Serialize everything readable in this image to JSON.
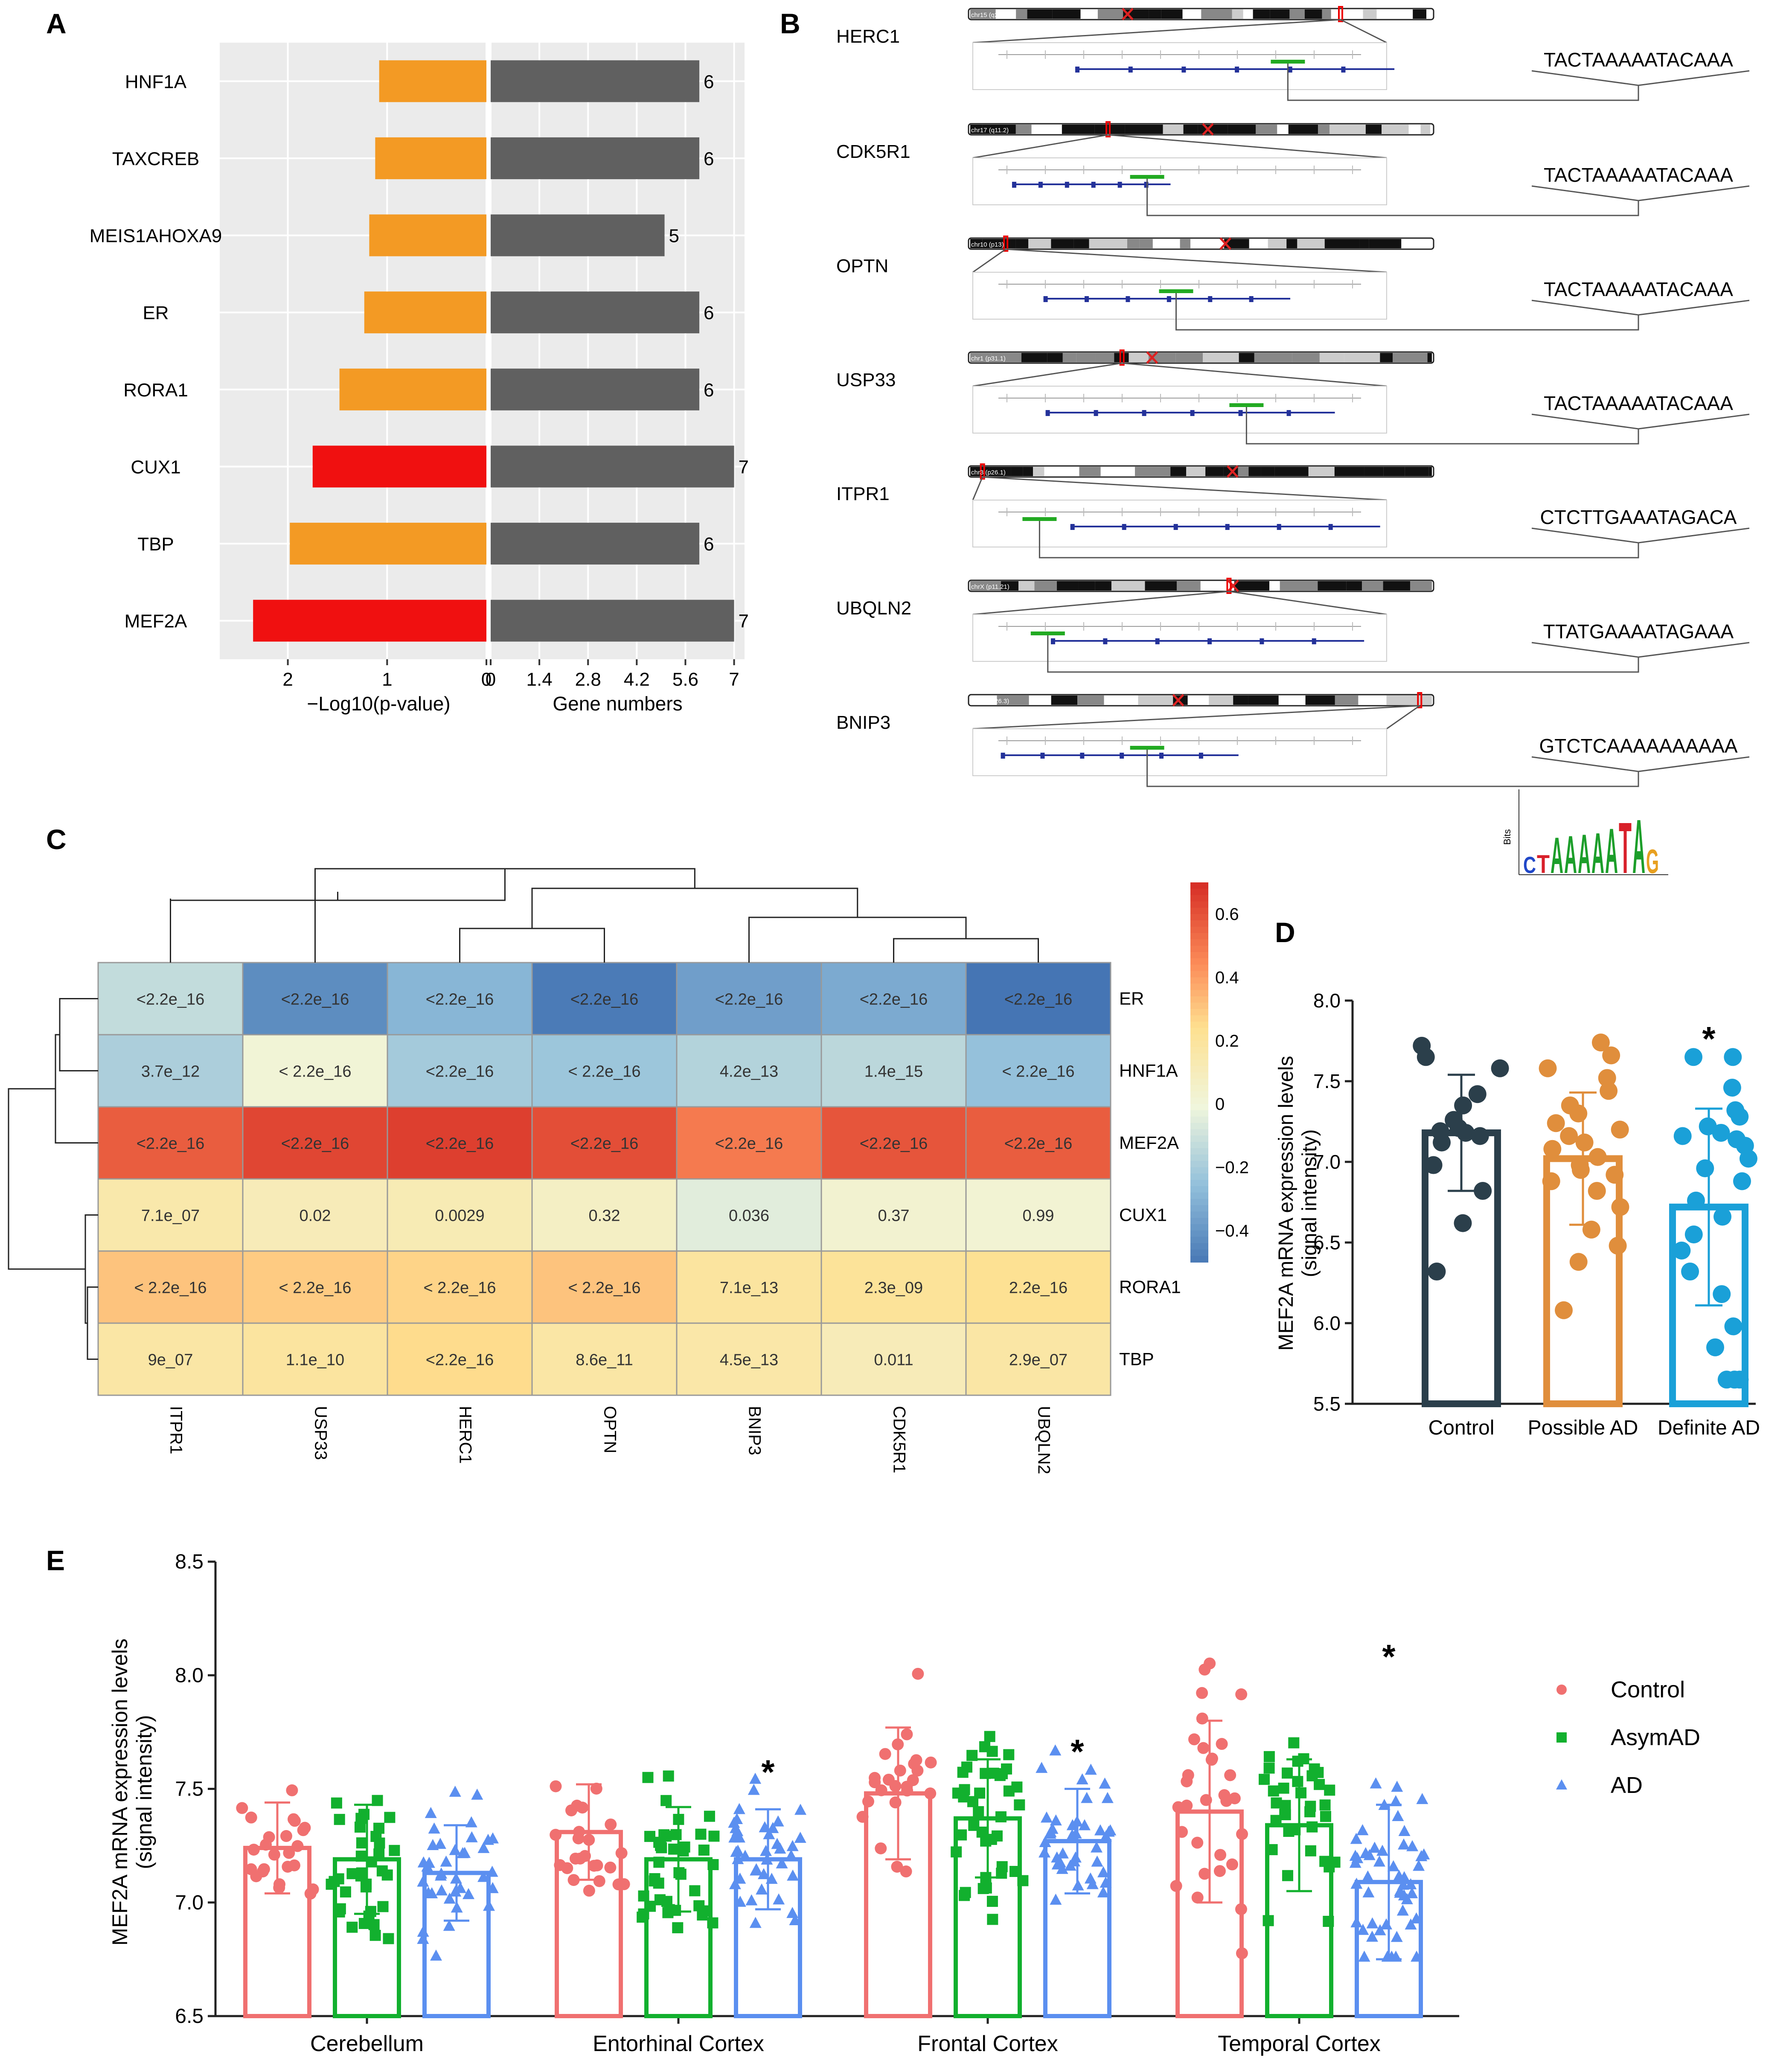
{
  "panels": {
    "A": "A",
    "B": "B",
    "C": "C",
    "D": "D",
    "E": "E"
  },
  "colors": {
    "orange": "#F39A24",
    "red": "#F01010",
    "gray": "#606060",
    "panel_bg": "#EBEBEB",
    "grid": "#FFFFFF",
    "control_d": "#2B3F4B",
    "possible": "#E08E3C",
    "definite": "#1AA0D8",
    "control_e": "#F07070",
    "asym": "#12B02E",
    "ad": "#5B8FF0"
  },
  "chart_data": [
    {
      "panel": "A",
      "type": "bar",
      "categories": [
        "HNF1A",
        "TAXCREB",
        "MEIS1AHOXA9",
        "ER",
        "RORA1",
        "CUX1",
        "TBP",
        "MEF2A"
      ],
      "series": [
        {
          "name": "-Log10(p-value)",
          "values": [
            1.08,
            1.12,
            1.18,
            1.23,
            1.48,
            1.75,
            1.98,
            2.35
          ],
          "colors": [
            "orange",
            "orange",
            "orange",
            "orange",
            "orange",
            "red",
            "orange",
            "red"
          ]
        },
        {
          "name": "Gene numbers",
          "values": [
            6,
            6,
            5,
            6,
            6,
            7,
            6,
            7
          ],
          "labels": [
            "6",
            "6",
            "5",
            "6",
            "6",
            "7",
            "6",
            "7"
          ]
        }
      ],
      "left_xlabel": "−Log10(p-value)",
      "left_ticks": [
        "2",
        "1",
        "0"
      ],
      "left_tick_values": [
        2,
        1,
        0
      ],
      "left_xlim": [
        2.6,
        0
      ],
      "right_xlabel": "Gene numbers",
      "right_ticks": [
        "0",
        "1.4",
        "2.8",
        "4.2",
        "5.6",
        "7"
      ],
      "right_tick_values": [
        0,
        1.4,
        2.8,
        4.2,
        5.6,
        7
      ],
      "right_xlim": [
        0,
        7.3
      ]
    },
    {
      "panel": "B",
      "type": "table",
      "rows": [
        {
          "gene": "HERC1",
          "chr": "chr15 (q22.31)",
          "sequence": "TACTAAAAATACAAA"
        },
        {
          "gene": "CDK5R1",
          "chr": "chr17 (q11.2)",
          "sequence": "TACTAAAAATACAAA"
        },
        {
          "gene": "OPTN",
          "chr": "chr10 (p13)",
          "sequence": "TACTAAAAATACAAA"
        },
        {
          "gene": "USP33",
          "chr": "chr1 (p31.1)",
          "sequence": "TACTAAAAATACAAA"
        },
        {
          "gene": "ITPR1",
          "chr": "chr3 (p26.1)",
          "sequence": "CTCTTGAAATAGACA"
        },
        {
          "gene": "UBQLN2",
          "chr": "chrX (p11.21)",
          "sequence": "TTATGAAAATAGAAA"
        },
        {
          "gene": "BNIP3",
          "chr": "chr10 (q26.3)",
          "sequence": "GTCTCAAAAAAAAAA"
        }
      ],
      "logo_label": "Bits",
      "logo_letters": [
        "C",
        "T",
        "A",
        "A",
        "A",
        "A",
        "A",
        "T",
        "A",
        "G"
      ]
    },
    {
      "panel": "C",
      "type": "heatmap",
      "columns": [
        "ITPR1",
        "USP33",
        "HERC1",
        "OPTN",
        "BNIP3",
        "CDK5R1",
        "UBQLN2"
      ],
      "rows": [
        "ER",
        "HNF1A",
        "MEF2A",
        "CUX1",
        "RORA1",
        "TBP"
      ],
      "correlations": [
        [
          -0.12,
          -0.42,
          -0.28,
          -0.48,
          -0.36,
          -0.32,
          -0.5
        ],
        [
          -0.18,
          0.02,
          -0.2,
          -0.22,
          -0.16,
          -0.14,
          -0.24
        ],
        [
          0.58,
          0.64,
          0.66,
          0.62,
          0.5,
          0.6,
          0.58
        ],
        [
          0.16,
          0.12,
          0.13,
          0.08,
          -0.04,
          0.04,
          0.03
        ],
        [
          0.32,
          0.3,
          0.28,
          0.32,
          0.2,
          0.22,
          0.24
        ],
        [
          0.18,
          0.2,
          0.26,
          0.18,
          0.17,
          0.12,
          0.18
        ]
      ],
      "labels": [
        [
          "<2.2e_16",
          "<2.2e_16",
          "<2.2e_16",
          "<2.2e_16",
          "<2.2e_16",
          "<2.2e_16",
          "<2.2e_16"
        ],
        [
          "3.7e_12",
          "< 2.2e_16",
          "<2.2e_16",
          "< 2.2e_16",
          "4.2e_13",
          "1.4e_15",
          "< 2.2e_16"
        ],
        [
          "<2.2e_16",
          "<2.2e_16",
          "<2.2e_16",
          "<2.2e_16",
          "<2.2e_16",
          "<2.2e_16",
          "<2.2e_16"
        ],
        [
          "7.1e_07",
          "0.02",
          "0.0029",
          "0.32",
          "0.036",
          "0.37",
          "0.99"
        ],
        [
          "< 2.2e_16",
          "< 2.2e_16",
          "< 2.2e_16",
          "< 2.2e_16",
          "7.1e_13",
          "2.3e_09",
          "2.2e_16"
        ],
        [
          "9e_07",
          "1.1e_10",
          "<2.2e_16",
          "8.6e_11",
          "4.5e_13",
          "0.011",
          "2.9e_07"
        ]
      ],
      "colorbar_ticks": [
        "0.6",
        "0.4",
        "0.2",
        "0",
        "−0.2",
        "−0.4"
      ],
      "colorbar_values": [
        0.6,
        0.4,
        0.2,
        0,
        -0.2,
        -0.4
      ],
      "colorbar_range": [
        -0.5,
        0.7
      ]
    },
    {
      "panel": "D",
      "type": "bar",
      "categories": [
        "Control",
        "Possible AD",
        "Definite AD"
      ],
      "means": [
        7.18,
        7.02,
        6.72
      ],
      "sd": [
        0.36,
        0.41,
        0.61
      ],
      "significance": [
        "",
        "",
        "*"
      ],
      "points": [
        [
          7.72,
          7.65,
          7.58,
          7.42,
          7.35,
          7.26,
          7.21,
          7.19,
          7.18,
          7.16,
          7.12,
          6.98,
          6.82,
          6.62,
          6.32
        ],
        [
          7.74,
          7.66,
          7.58,
          7.52,
          7.44,
          7.35,
          7.3,
          7.24,
          7.2,
          7.16,
          7.12,
          7.08,
          7.03,
          6.98,
          6.95,
          6.92,
          6.88,
          6.82,
          6.72,
          6.58,
          6.48,
          6.38,
          6.08
        ],
        [
          7.65,
          7.65,
          7.46,
          7.32,
          7.28,
          7.22,
          7.18,
          7.16,
          7.14,
          7.1,
          7.02,
          6.96,
          6.88,
          6.76,
          6.66,
          6.55,
          6.45,
          6.32,
          6.18,
          5.98,
          5.85,
          5.65,
          5.65,
          5.65
        ]
      ],
      "ylabel": "MEF2A mRNA expression levels\n(signal intensity)",
      "ylim": [
        5.5,
        8.0
      ],
      "yticks": [
        "8.0",
        "7.5",
        "7.0",
        "6.5",
        "6.0",
        "5.5"
      ],
      "ytick_values": [
        8.0,
        7.5,
        7.0,
        6.5,
        6.0,
        5.5
      ]
    },
    {
      "panel": "E",
      "type": "bar",
      "categories": [
        "Cerebellum",
        "Entorhinal Cortex",
        "Frontal Cortex",
        "Temporal Cortex"
      ],
      "series": [
        {
          "name": "Control",
          "means": [
            7.24,
            7.31,
            7.48,
            7.4
          ],
          "sd": [
            0.2,
            0.21,
            0.29,
            0.4
          ]
        },
        {
          "name": "AsymAD",
          "means": [
            7.19,
            7.19,
            7.37,
            7.34
          ],
          "sd": [
            0.24,
            0.23,
            0.26,
            0.29
          ]
        },
        {
          "name": "AD",
          "means": [
            7.13,
            7.19,
            7.27,
            7.09
          ],
          "sd": [
            0.21,
            0.22,
            0.23,
            0.34
          ]
        }
      ],
      "significance": [
        [
          "",
          "",
          ""
        ],
        [
          "",
          "",
          "*"
        ],
        [
          "",
          "",
          "*"
        ],
        [
          "",
          "",
          "*"
        ]
      ],
      "ylabel": "MEF2A mRNA expression levels\n(signal intensity)",
      "ylim": [
        6.5,
        8.5
      ],
      "yticks": [
        "8.5",
        "8.0",
        "7.5",
        "7.0",
        "6.5"
      ],
      "ytick_values": [
        8.5,
        8.0,
        7.5,
        7.0,
        6.5
      ],
      "legend": [
        "Control",
        "AsymAD",
        "AD"
      ]
    }
  ]
}
